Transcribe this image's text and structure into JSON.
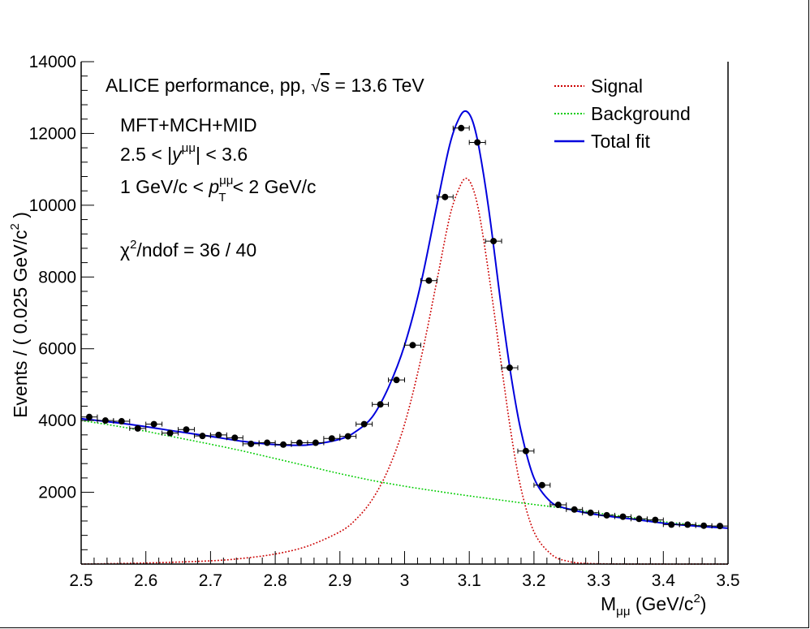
{
  "chart_data": {
    "type": "line",
    "title": "",
    "xlabel": "M_μμ (GeV/c²)",
    "ylabel": "Events / ( 0.025 GeV/c² )",
    "xlim": [
      2.5,
      3.5
    ],
    "ylim": [
      0,
      14000
    ],
    "x_ticks": [
      2.5,
      2.6,
      2.7,
      2.8,
      2.9,
      3.0,
      3.1,
      3.2,
      3.3,
      3.4,
      3.5
    ],
    "x_tick_labels": [
      "2.5",
      "2.6",
      "2.7",
      "2.8",
      "2.9",
      "3",
      "3.1",
      "3.2",
      "3.3",
      "3.4",
      "3.5"
    ],
    "y_ticks": [
      2000,
      4000,
      6000,
      8000,
      10000,
      12000,
      14000
    ],
    "y_tick_labels": [
      "2000",
      "4000",
      "6000",
      "8000",
      "10000",
      "12000",
      "14000"
    ],
    "grid": false,
    "legend_position": "top-right",
    "annotations": [
      "ALICE performance, pp, √s = 13.6 TeV",
      "MFT+MCH+MID",
      "2.5 < |y^μμ| < 3.6",
      "1 GeV/c < p_T^μμ < 2 GeV/c",
      "χ²/ndof = 36 / 40"
    ],
    "data_points": {
      "name": "",
      "x_error": 0.0125,
      "x": [
        2.5125,
        2.5375,
        2.5625,
        2.5875,
        2.6125,
        2.6375,
        2.6625,
        2.6875,
        2.7125,
        2.7375,
        2.7625,
        2.7875,
        2.8125,
        2.8375,
        2.8625,
        2.8875,
        2.9125,
        2.9375,
        2.9625,
        2.9875,
        3.0125,
        3.0375,
        3.0625,
        3.0875,
        3.1125,
        3.1375,
        3.1625,
        3.1875,
        3.2125,
        3.2375,
        3.2625,
        3.2875,
        3.3125,
        3.3375,
        3.3625,
        3.3875,
        3.4125,
        3.4375,
        3.4625,
        3.4875
      ],
      "y": [
        4100,
        4000,
        3980,
        3780,
        3900,
        3650,
        3750,
        3570,
        3600,
        3520,
        3350,
        3380,
        3330,
        3380,
        3380,
        3500,
        3560,
        3900,
        4450,
        5130,
        6100,
        7900,
        10230,
        12150,
        11750,
        9000,
        5470,
        3150,
        2200,
        1650,
        1520,
        1430,
        1360,
        1320,
        1260,
        1230,
        1100,
        1100,
        1070,
        1060
      ]
    },
    "series": [
      {
        "name": "Signal",
        "color": "#cc0000",
        "style": "dotted",
        "x": [
          2.5,
          2.6,
          2.7,
          2.75,
          2.8,
          2.85,
          2.9,
          2.925,
          2.95,
          2.975,
          3.0,
          3.025,
          3.05,
          3.07,
          3.085,
          3.095,
          3.105,
          3.115,
          3.13,
          3.15,
          3.165,
          3.18,
          3.2,
          3.225,
          3.25,
          3.3,
          3.5
        ],
        "y": [
          0,
          30,
          90,
          160,
          280,
          500,
          900,
          1250,
          1800,
          2650,
          3900,
          5700,
          7900,
          9700,
          10500,
          10750,
          10500,
          9800,
          8100,
          5500,
          3600,
          2100,
          900,
          300,
          90,
          10,
          0
        ]
      },
      {
        "name": "Background",
        "color": "#00cc00",
        "style": "dotted",
        "x": [
          2.5,
          2.55,
          2.6,
          2.65,
          2.7,
          2.75,
          2.8,
          2.85,
          2.9,
          2.95,
          3.0,
          3.05,
          3.1,
          3.15,
          3.2,
          3.25,
          3.3,
          3.35,
          3.4,
          3.45,
          3.5
        ],
        "y": [
          4000,
          3860,
          3700,
          3520,
          3340,
          3150,
          2940,
          2730,
          2520,
          2330,
          2170,
          2030,
          1900,
          1780,
          1660,
          1550,
          1420,
          1300,
          1180,
          1090,
          1000
        ]
      },
      {
        "name": "Total fit",
        "color": "#0000dd",
        "style": "solid",
        "x": [
          2.5,
          2.55,
          2.6,
          2.65,
          2.7,
          2.75,
          2.8,
          2.85,
          2.9,
          2.925,
          2.95,
          2.975,
          3.0,
          3.025,
          3.05,
          3.07,
          3.085,
          3.095,
          3.105,
          3.115,
          3.13,
          3.15,
          3.165,
          3.18,
          3.2,
          3.225,
          3.25,
          3.3,
          3.35,
          3.4,
          3.45,
          3.5
        ],
        "y": [
          4050,
          3950,
          3830,
          3690,
          3560,
          3420,
          3330,
          3320,
          3480,
          3700,
          4100,
          4920,
          6100,
          7800,
          10000,
          11700,
          12450,
          12620,
          12350,
          11600,
          9900,
          7100,
          5200,
          3700,
          2400,
          1750,
          1550,
          1370,
          1260,
          1140,
          1060,
          1000
        ]
      }
    ]
  }
}
